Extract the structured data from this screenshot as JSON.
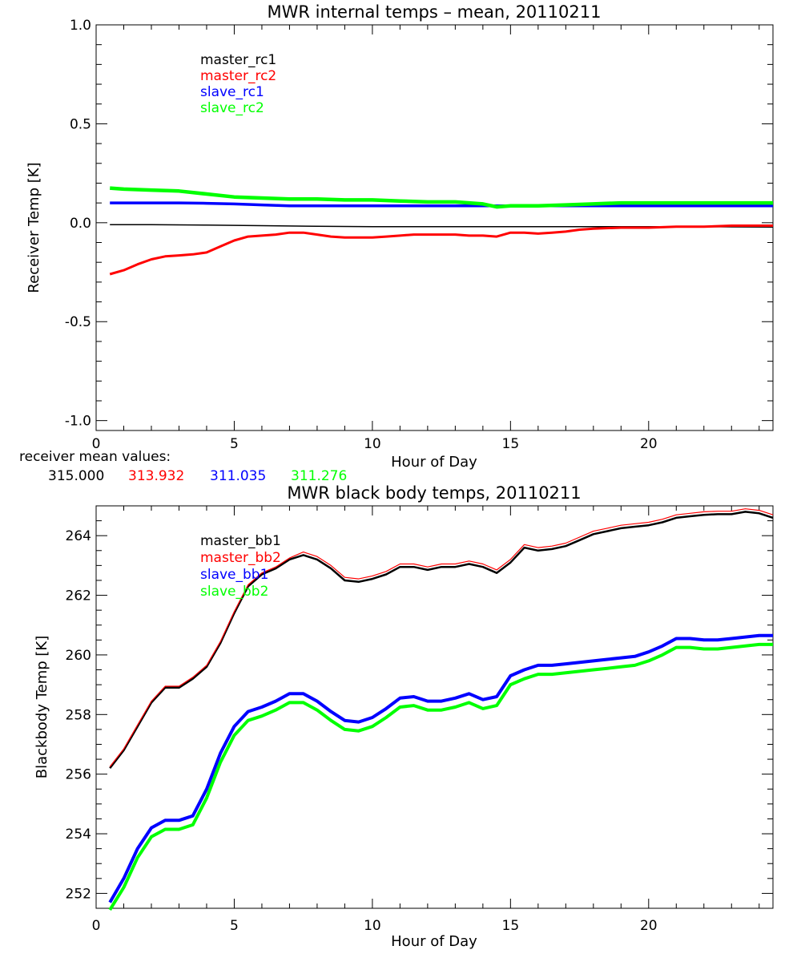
{
  "chart_data": [
    {
      "type": "line",
      "title": "MWR internal temps – mean, 20110211",
      "xlabel": "Hour of Day",
      "ylabel": "Receiver Temp [K]",
      "xlim": [
        0,
        24.5
      ],
      "ylim": [
        -1.05,
        1.0
      ],
      "x_ticks": [
        0,
        5,
        10,
        15,
        20
      ],
      "x_tick_labels": [
        "0",
        "5",
        "10",
        "15",
        "20"
      ],
      "y_ticks": [
        -1.0,
        -0.5,
        0.0,
        0.5,
        1.0
      ],
      "y_tick_labels": [
        "-1.0",
        "-0.5",
        "0.0",
        "0.5",
        "1.0"
      ],
      "grid": false,
      "legend_position": "top-left",
      "series": [
        {
          "name": "master_rc1",
          "color": "#000000",
          "x": [
            0.5,
            2,
            4,
            6,
            8,
            10,
            12,
            14,
            16,
            18,
            20,
            22,
            24.5
          ],
          "y": [
            -0.01,
            -0.01,
            -0.012,
            -0.015,
            -0.018,
            -0.02,
            -0.02,
            -0.02,
            -0.02,
            -0.02,
            -0.02,
            -0.02,
            -0.022
          ]
        },
        {
          "name": "master_rc2",
          "color": "#ff0000",
          "x": [
            0.5,
            1,
            1.5,
            2,
            2.5,
            3,
            3.5,
            4,
            4.5,
            5,
            5.5,
            6,
            6.5,
            7,
            7.5,
            8,
            8.5,
            9,
            9.5,
            10,
            10.5,
            11,
            11.5,
            12,
            12.5,
            13,
            13.5,
            14,
            14.5,
            15,
            15.5,
            16,
            16.5,
            17,
            17.5,
            18,
            19,
            20,
            21,
            22,
            23,
            24.5
          ],
          "y": [
            -0.26,
            -0.24,
            -0.21,
            -0.185,
            -0.17,
            -0.165,
            -0.16,
            -0.15,
            -0.12,
            -0.09,
            -0.07,
            -0.065,
            -0.06,
            -0.05,
            -0.05,
            -0.06,
            -0.07,
            -0.075,
            -0.075,
            -0.075,
            -0.07,
            -0.065,
            -0.06,
            -0.06,
            -0.06,
            -0.06,
            -0.065,
            -0.065,
            -0.07,
            -0.05,
            -0.05,
            -0.055,
            -0.05,
            -0.045,
            -0.035,
            -0.03,
            -0.025,
            -0.025,
            -0.02,
            -0.02,
            -0.015,
            -0.015
          ]
        },
        {
          "name": "slave_rc1",
          "color": "#0000ff",
          "x": [
            0.5,
            1,
            2,
            3,
            4,
            5,
            6,
            7,
            8,
            9,
            10,
            11,
            12,
            13,
            14,
            14.5,
            15,
            16,
            17,
            18,
            19,
            20,
            21,
            22,
            23,
            24.5
          ],
          "y": [
            0.1,
            0.1,
            0.1,
            0.1,
            0.098,
            0.095,
            0.09,
            0.085,
            0.085,
            0.085,
            0.085,
            0.085,
            0.085,
            0.085,
            0.085,
            0.085,
            0.085,
            0.085,
            0.085,
            0.085,
            0.085,
            0.085,
            0.085,
            0.085,
            0.085,
            0.085
          ]
        },
        {
          "name": "slave_rc2",
          "color": "#00ff00",
          "x": [
            0.5,
            1,
            2,
            3,
            4,
            5,
            6,
            7,
            8,
            9,
            10,
            11,
            12,
            13,
            13.5,
            14,
            14.5,
            15,
            16,
            17,
            18,
            19,
            20,
            21,
            22,
            23,
            24.5
          ],
          "y": [
            0.175,
            0.17,
            0.165,
            0.16,
            0.145,
            0.13,
            0.125,
            0.12,
            0.12,
            0.115,
            0.115,
            0.11,
            0.105,
            0.105,
            0.1,
            0.095,
            0.08,
            0.085,
            0.085,
            0.09,
            0.095,
            0.1,
            0.1,
            0.1,
            0.1,
            0.1,
            0.1
          ]
        }
      ],
      "annotation": {
        "label": "receiver mean values:",
        "values": [
          {
            "text": "315.000",
            "color": "#000000"
          },
          {
            "text": "313.932",
            "color": "#ff0000"
          },
          {
            "text": "311.035",
            "color": "#0000ff"
          },
          {
            "text": "311.276",
            "color": "#00ff00"
          }
        ]
      }
    },
    {
      "type": "line",
      "title": "MWR black body temps, 20110211",
      "xlabel": "Hour of Day",
      "ylabel": "Blackbody Temp [K]",
      "xlim": [
        0,
        24.5
      ],
      "ylim": [
        251.5,
        265
      ],
      "x_ticks": [
        0,
        5,
        10,
        15,
        20
      ],
      "x_tick_labels": [
        "0",
        "5",
        "10",
        "15",
        "20"
      ],
      "y_ticks": [
        252,
        254,
        256,
        258,
        260,
        262,
        264
      ],
      "y_tick_labels": [
        "252",
        "254",
        "256",
        "258",
        "260",
        "262",
        "264"
      ],
      "grid": false,
      "legend_position": "top-left",
      "series": [
        {
          "name": "master_bb1",
          "color": "#000000",
          "x": [
            0.5,
            1,
            1.5,
            2,
            2.5,
            3,
            3.5,
            4,
            4.5,
            5,
            5.5,
            6,
            6.5,
            7,
            7.5,
            8,
            8.5,
            9,
            9.5,
            10,
            10.5,
            11,
            11.5,
            12,
            12.5,
            13,
            13.5,
            14,
            14.5,
            15,
            15.5,
            16,
            16.5,
            17,
            17.5,
            18,
            18.5,
            19,
            19.5,
            20,
            20.5,
            21,
            21.5,
            22,
            22.5,
            23,
            23.5,
            24,
            24.5
          ],
          "y": [
            256.2,
            256.8,
            257.6,
            258.4,
            258.9,
            258.9,
            259.2,
            259.6,
            260.4,
            261.4,
            262.3,
            262.7,
            262.9,
            263.2,
            263.35,
            263.2,
            262.9,
            262.5,
            262.45,
            262.55,
            262.7,
            262.95,
            262.95,
            262.85,
            262.95,
            262.95,
            263.05,
            262.95,
            262.75,
            263.1,
            263.6,
            263.5,
            263.55,
            263.65,
            263.85,
            264.05,
            264.15,
            264.25,
            264.3,
            264.35,
            264.45,
            264.6,
            264.65,
            264.7,
            264.72,
            264.72,
            264.8,
            264.75,
            264.6
          ]
        },
        {
          "name": "master_bb2",
          "color": "#ff0000",
          "x": [
            0.5,
            1,
            1.5,
            2,
            2.5,
            3,
            3.5,
            4,
            4.5,
            5,
            5.5,
            6,
            6.5,
            7,
            7.5,
            8,
            8.5,
            9,
            9.5,
            10,
            10.5,
            11,
            11.5,
            12,
            12.5,
            13,
            13.5,
            14,
            14.5,
            15,
            15.5,
            16,
            16.5,
            17,
            17.5,
            18,
            18.5,
            19,
            19.5,
            20,
            20.5,
            21,
            21.5,
            22,
            22.5,
            23,
            23.5,
            24,
            24.5
          ],
          "y": [
            256.25,
            256.85,
            257.65,
            258.45,
            258.95,
            258.95,
            259.25,
            259.65,
            260.45,
            261.45,
            262.35,
            262.75,
            262.95,
            263.25,
            263.45,
            263.3,
            263.0,
            262.6,
            262.55,
            262.65,
            262.8,
            263.05,
            263.05,
            262.95,
            263.05,
            263.05,
            263.15,
            263.05,
            262.85,
            263.2,
            263.7,
            263.6,
            263.65,
            263.75,
            263.95,
            264.15,
            264.25,
            264.35,
            264.4,
            264.45,
            264.55,
            264.7,
            264.75,
            264.8,
            264.82,
            264.82,
            264.9,
            264.85,
            264.7
          ]
        },
        {
          "name": "slave_bb1",
          "color": "#0000ff",
          "x": [
            0.5,
            1,
            1.5,
            2,
            2.5,
            3,
            3.5,
            4,
            4.5,
            5,
            5.5,
            6,
            6.5,
            7,
            7.5,
            8,
            8.5,
            9,
            9.5,
            10,
            10.5,
            11,
            11.5,
            12,
            12.5,
            13,
            13.5,
            14,
            14.5,
            15,
            15.5,
            16,
            16.5,
            17,
            17.5,
            18,
            18.5,
            19,
            19.5,
            20,
            20.5,
            21,
            21.5,
            22,
            22.5,
            23,
            23.5,
            24,
            24.5
          ],
          "y": [
            251.7,
            252.5,
            253.5,
            254.2,
            254.45,
            254.45,
            254.6,
            255.5,
            256.7,
            257.6,
            258.1,
            258.25,
            258.45,
            258.7,
            258.7,
            258.45,
            258.1,
            257.8,
            257.75,
            257.9,
            258.2,
            258.55,
            258.6,
            258.45,
            258.45,
            258.55,
            258.7,
            258.5,
            258.6,
            259.3,
            259.5,
            259.65,
            259.65,
            259.7,
            259.75,
            259.8,
            259.85,
            259.9,
            259.95,
            260.1,
            260.3,
            260.55,
            260.55,
            260.5,
            260.5,
            260.55,
            260.6,
            260.65,
            260.65
          ]
        },
        {
          "name": "slave_bb2",
          "color": "#00ff00",
          "x": [
            0.5,
            1,
            1.5,
            2,
            2.5,
            3,
            3.5,
            4,
            4.5,
            5,
            5.5,
            6,
            6.5,
            7,
            7.5,
            8,
            8.5,
            9,
            9.5,
            10,
            10.5,
            11,
            11.5,
            12,
            12.5,
            13,
            13.5,
            14,
            14.5,
            15,
            15.5,
            16,
            16.5,
            17,
            17.5,
            18,
            18.5,
            19,
            19.5,
            20,
            20.5,
            21,
            21.5,
            22,
            22.5,
            23,
            23.5,
            24,
            24.5
          ],
          "y": [
            251.45,
            252.2,
            253.2,
            253.9,
            254.15,
            254.15,
            254.3,
            255.2,
            256.4,
            257.3,
            257.8,
            257.95,
            258.15,
            258.4,
            258.4,
            258.15,
            257.8,
            257.5,
            257.45,
            257.6,
            257.9,
            258.25,
            258.3,
            258.15,
            258.15,
            258.25,
            258.4,
            258.2,
            258.3,
            259.0,
            259.2,
            259.35,
            259.35,
            259.4,
            259.45,
            259.5,
            259.55,
            259.6,
            259.65,
            259.8,
            260.0,
            260.25,
            260.25,
            260.2,
            260.2,
            260.25,
            260.3,
            260.35,
            260.35
          ]
        }
      ]
    }
  ]
}
